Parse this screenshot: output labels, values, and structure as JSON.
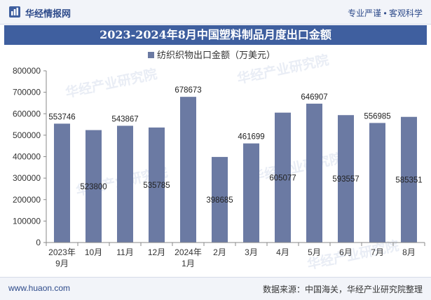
{
  "header": {
    "brand": "华经情报网",
    "tagline": "专业严谨 • 客观科学",
    "logo_icon": "huajing-logo-icon"
  },
  "title": "2023-2024年8月中国塑料制品月度出口金额",
  "footer": {
    "site": "www.huaon.com",
    "source": "数据来源：中国海关，华经产业研究院整理"
  },
  "watermark": "华经产业研究院",
  "colors": {
    "bar": "#6b7aa3",
    "title_bg": "#3f5f9f"
  },
  "chart_data": {
    "type": "bar",
    "categories": [
      "2023年\n9月",
      "10月",
      "11月",
      "12月",
      "2024年\n1月",
      "2月",
      "3月",
      "4月",
      "5月",
      "6月",
      "7月",
      "8月"
    ],
    "series": [
      {
        "name": "纺织织物出口金额（万美元）",
        "values": [
          553746,
          523800,
          543867,
          535785,
          678673,
          398685,
          461699,
          605077,
          646907,
          593557,
          556985,
          585351
        ]
      }
    ],
    "label_position": [
      "above",
      "inside",
      "above",
      "inside",
      "above",
      "inside",
      "above",
      "inside",
      "above",
      "inside",
      "above",
      "inside"
    ],
    "ylim": [
      0,
      800000
    ],
    "yticks": [
      0,
      100000,
      200000,
      300000,
      400000,
      500000,
      600000,
      700000,
      800000
    ],
    "grid": false,
    "legend_position": "top-center"
  }
}
